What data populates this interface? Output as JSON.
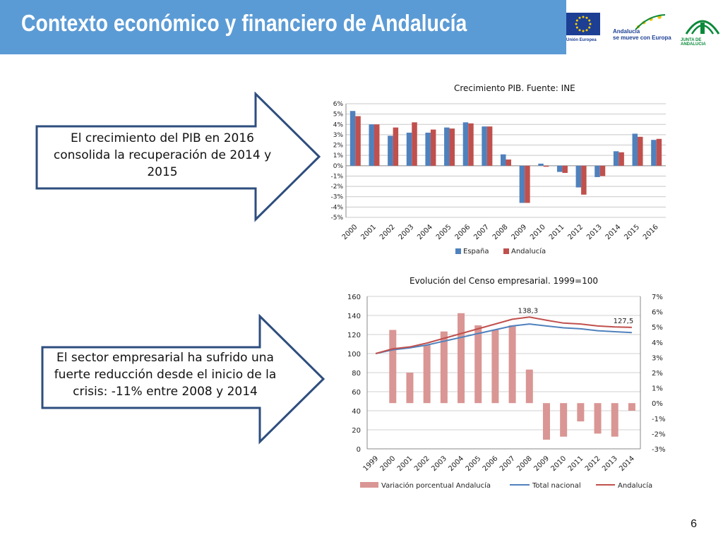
{
  "header": {
    "title": "Contexto económico y financiero de Andalucía"
  },
  "logos": {
    "eu_label": "Unión Europea",
    "andalucia_line1": "Andalucía",
    "andalucia_line2": "se mueve con Europa",
    "junta_label": "JUNTA DE ANDALUCIA"
  },
  "callouts": {
    "pib_text": "El crecimiento del PIB en 2016 consolida la recuperación de 2014 y 2015",
    "empresas_text": "El sector empresarial ha sufrido una fuerte reducción desde el inicio de la crisis: -11% entre 2008 y 2014"
  },
  "page_number": "6",
  "colors": {
    "header": "#5b9bd5",
    "espana": "#4f81bd",
    "andalucia": "#c0504d",
    "variacion": "#d99694",
    "total": "#4f81bd",
    "and_line": "#c0504d",
    "arrow_border": "#2e4e7e"
  },
  "chart_data": [
    {
      "type": "bar",
      "title": "Crecimiento PIB. Fuente: INE",
      "categories": [
        "2000",
        "2001",
        "2002",
        "2003",
        "2004",
        "2005",
        "2006",
        "2007",
        "2008",
        "2009",
        "2010",
        "2011",
        "2012",
        "2013",
        "2014",
        "2015",
        "2016"
      ],
      "series": [
        {
          "name": "España",
          "values": [
            5.3,
            4.0,
            2.9,
            3.2,
            3.2,
            3.7,
            4.2,
            3.8,
            1.1,
            -3.6,
            0.2,
            -0.6,
            -2.1,
            -1.1,
            1.4,
            3.1,
            2.5
          ]
        },
        {
          "name": "Andalucía",
          "values": [
            4.8,
            4.0,
            3.7,
            4.2,
            3.5,
            3.6,
            4.1,
            3.8,
            0.6,
            -3.6,
            -0.1,
            -0.7,
            -2.8,
            -1.0,
            1.3,
            2.8,
            2.6
          ]
        }
      ],
      "yticks": [
        "6%",
        "5%",
        "4%",
        "3%",
        "2%",
        "1%",
        "0%",
        "-1%",
        "-2%",
        "-3%",
        "-4%",
        "-5%"
      ],
      "ylim": [
        -5,
        6
      ],
      "grid": true,
      "legend": "bottom"
    },
    {
      "type": "bar+line",
      "title": "Evolución del Censo empresarial. 1999=100",
      "categories": [
        "1999",
        "2000",
        "2001",
        "2002",
        "2003",
        "2004",
        "2005",
        "2006",
        "2007",
        "2008",
        "2009",
        "2010",
        "2011",
        "2012",
        "2013",
        "2014"
      ],
      "bar_series": {
        "name": "Variación porcentual Andalucía",
        "axis": "right",
        "values": [
          null,
          4.8,
          2.0,
          3.8,
          4.7,
          5.9,
          5.1,
          4.8,
          5.1,
          2.2,
          -2.4,
          -2.2,
          -1.2,
          -2.0,
          -2.2,
          -0.5
        ]
      },
      "line_series": [
        {
          "name": "Total nacional",
          "axis": "left",
          "values": [
            100,
            104,
            106,
            109,
            113,
            117,
            121,
            125,
            129,
            131,
            129,
            127,
            126,
            124,
            123,
            122
          ]
        },
        {
          "name": "Andalucía",
          "axis": "left",
          "values": [
            100,
            105,
            107,
            111,
            116,
            121,
            126,
            131,
            136,
            138.3,
            135,
            132,
            131,
            129,
            128,
            127.5
          ]
        }
      ],
      "annotations": [
        "138,3",
        "127,5"
      ],
      "yticks_left": [
        "160",
        "140",
        "120",
        "100",
        "80",
        "60",
        "40",
        "20",
        "0"
      ],
      "yticks_right": [
        "7%",
        "6%",
        "5%",
        "4%",
        "3%",
        "2%",
        "1%",
        "0%",
        "-1%",
        "-2%",
        "-3%"
      ],
      "ylim_left": [
        0,
        160
      ],
      "ylim_right": [
        -3,
        7
      ],
      "grid": true,
      "legend": "bottom"
    }
  ]
}
